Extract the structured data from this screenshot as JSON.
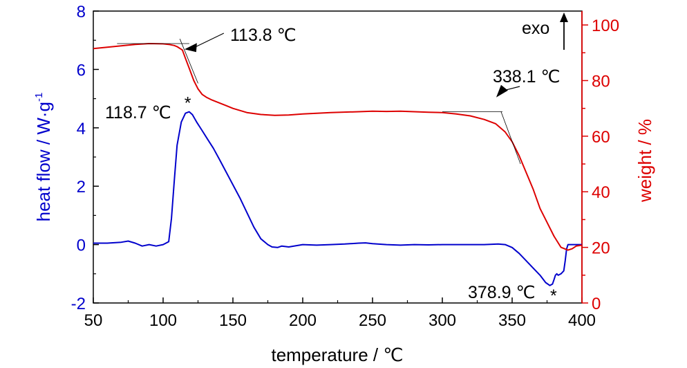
{
  "chart_data": {
    "type": "line",
    "xlabel": "temperature / ℃",
    "ylabel_left": "heat flow / W·g",
    "ylabel_left_superscript": "-1",
    "ylabel_right": "weight / %",
    "xlim": [
      50,
      400
    ],
    "ylim_left": [
      -2,
      8
    ],
    "ylim_right": [
      0,
      105
    ],
    "x_ticks": [
      "50",
      "100",
      "150",
      "200",
      "250",
      "300",
      "350",
      "400"
    ],
    "y_left_ticks": [
      "-2",
      "0",
      "2",
      "4",
      "6",
      "8"
    ],
    "y_right_ticks": [
      "0",
      "20",
      "40",
      "60",
      "80",
      "100"
    ],
    "grid": false,
    "colors": {
      "heat_flow": "#0000cc",
      "weight": "#dd0000",
      "annotation": "#000000"
    },
    "series": [
      {
        "axis": "left",
        "x": [
          50,
          60,
          70,
          75,
          80,
          85,
          90,
          95,
          100,
          104,
          106,
          108,
          110,
          113,
          116,
          118.7,
          121,
          124,
          128,
          132,
          136,
          140,
          145,
          150,
          155,
          160,
          165,
          170,
          175,
          178,
          182,
          185,
          190,
          200,
          210,
          220,
          230,
          240,
          245,
          250,
          260,
          270,
          280,
          290,
          300,
          310,
          320,
          330,
          340,
          345,
          350,
          355,
          360,
          365,
          370,
          374,
          377,
          378.9,
          380,
          381,
          382,
          383,
          385,
          387,
          388,
          389,
          390,
          392,
          395,
          400
        ],
        "y": [
          0.05,
          0.05,
          0.08,
          0.12,
          0.05,
          -0.05,
          0.0,
          -0.05,
          0.0,
          0.1,
          0.9,
          2.2,
          3.4,
          4.2,
          4.5,
          4.55,
          4.45,
          4.2,
          3.9,
          3.6,
          3.3,
          2.95,
          2.5,
          2.05,
          1.6,
          1.1,
          0.6,
          0.2,
          0.0,
          -0.08,
          -0.1,
          -0.05,
          -0.08,
          0.0,
          -0.02,
          0.0,
          0.02,
          0.05,
          0.06,
          0.03,
          0.0,
          -0.02,
          0.0,
          -0.01,
          0.0,
          0.0,
          0.0,
          0.0,
          0.02,
          0.0,
          -0.1,
          -0.3,
          -0.55,
          -0.8,
          -1.05,
          -1.3,
          -1.4,
          -1.35,
          -1.2,
          -1.05,
          -1.0,
          -1.05,
          -1.0,
          -0.9,
          -0.55,
          -0.15,
          0.0,
          0.0,
          0.0,
          0.0
        ]
      },
      {
        "axis": "right",
        "x": [
          50,
          60,
          70,
          80,
          90,
          100,
          104,
          108,
          110,
          113.8,
          116,
          119,
          122,
          125,
          128,
          131,
          135,
          140,
          145,
          150,
          160,
          170,
          180,
          190,
          200,
          220,
          240,
          250,
          260,
          270,
          280,
          290,
          300,
          310,
          320,
          330,
          338.1,
          345,
          350,
          355,
          360,
          365,
          370,
          375,
          380,
          385,
          390,
          393,
          396,
          400
        ],
        "y": [
          91.5,
          92,
          92.5,
          93,
          93.3,
          93.2,
          93,
          92.6,
          92.2,
          91,
          88,
          84,
          80,
          77,
          75,
          74,
          73,
          72,
          71,
          70,
          68.5,
          67.8,
          67.5,
          67.6,
          68,
          68.5,
          68.8,
          69,
          68.9,
          69,
          68.8,
          68.6,
          68.5,
          68,
          67.3,
          66,
          64.5,
          61.5,
          58,
          53,
          47,
          41,
          34,
          29,
          24,
          20,
          19,
          19.5,
          20.5,
          20.8
        ]
      }
    ],
    "annotations": [
      {
        "label": "113.8 ℃",
        "x": 113.8,
        "y": 91,
        "axis": "right",
        "kind": "onset"
      },
      {
        "label": "338.1 ℃",
        "x": 338.1,
        "y": 64.5,
        "axis": "right",
        "kind": "onset"
      },
      {
        "label": "118.7 ℃",
        "x": 118.7,
        "y": 4.55,
        "axis": "left",
        "kind": "peak",
        "marker": "*"
      },
      {
        "label": "378.9 ℃",
        "x": 378.9,
        "y": -1.4,
        "axis": "left",
        "kind": "peak",
        "marker": "*"
      }
    ],
    "direction_label": "exo"
  }
}
